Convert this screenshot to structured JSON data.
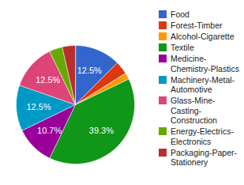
{
  "chart_data": {
    "type": "pie",
    "categories": [
      "Food",
      "Forest-Timber",
      "Alcohol-Cigarette",
      "Textile",
      "Medicine-Chemistry-Plastics",
      "Machinery-Metal-Automotive",
      "Glass-Mine-Casting-Construction",
      "Energy-Electrics-Electronics",
      "Packaging-Paper-Stationery"
    ],
    "values": [
      12.5,
      3.6,
      1.8,
      39.3,
      10.7,
      12.5,
      12.5,
      3.6,
      3.6
    ],
    "value_labels": [
      "12.5%",
      null,
      null,
      "39.3%",
      "10.7%",
      "12.5%",
      "12.5%",
      null,
      null
    ],
    "colors": [
      "#3366cc",
      "#dc3912",
      "#ff9900",
      "#109618",
      "#990099",
      "#0099c6",
      "#dd4477",
      "#66aa00",
      "#b82e2e"
    ],
    "legend": "right",
    "data_labels": true
  }
}
